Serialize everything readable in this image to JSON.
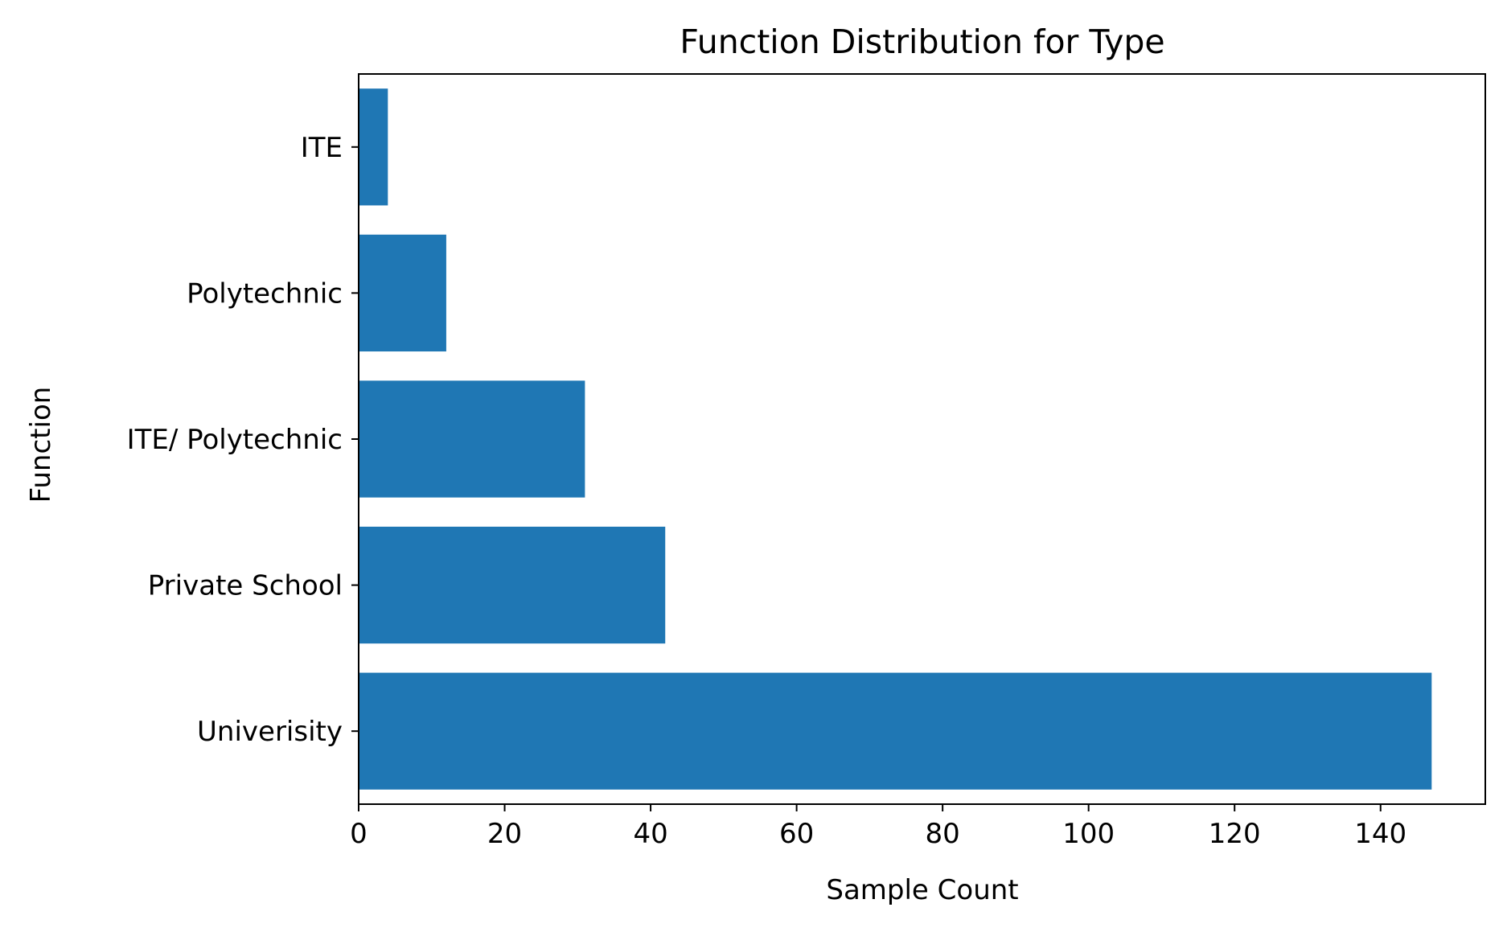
{
  "chart_data": {
    "type": "bar",
    "orientation": "horizontal",
    "title": "Function Distribution for Type",
    "xlabel": "Sample Count",
    "ylabel": "Function",
    "categories": [
      "Univerisity",
      "Private School",
      "ITE/ Polytechnic",
      "Polytechnic",
      "ITE"
    ],
    "values": [
      147,
      42,
      31,
      12,
      4
    ],
    "xlim": [
      0,
      154.35
    ],
    "xticks": [
      0,
      20,
      40,
      60,
      80,
      100,
      120,
      140
    ],
    "xtick_labels": [
      "0",
      "20",
      "40",
      "60",
      "80",
      "100",
      "120",
      "140"
    ],
    "grid": false,
    "bar_color": "#1f77b4"
  }
}
